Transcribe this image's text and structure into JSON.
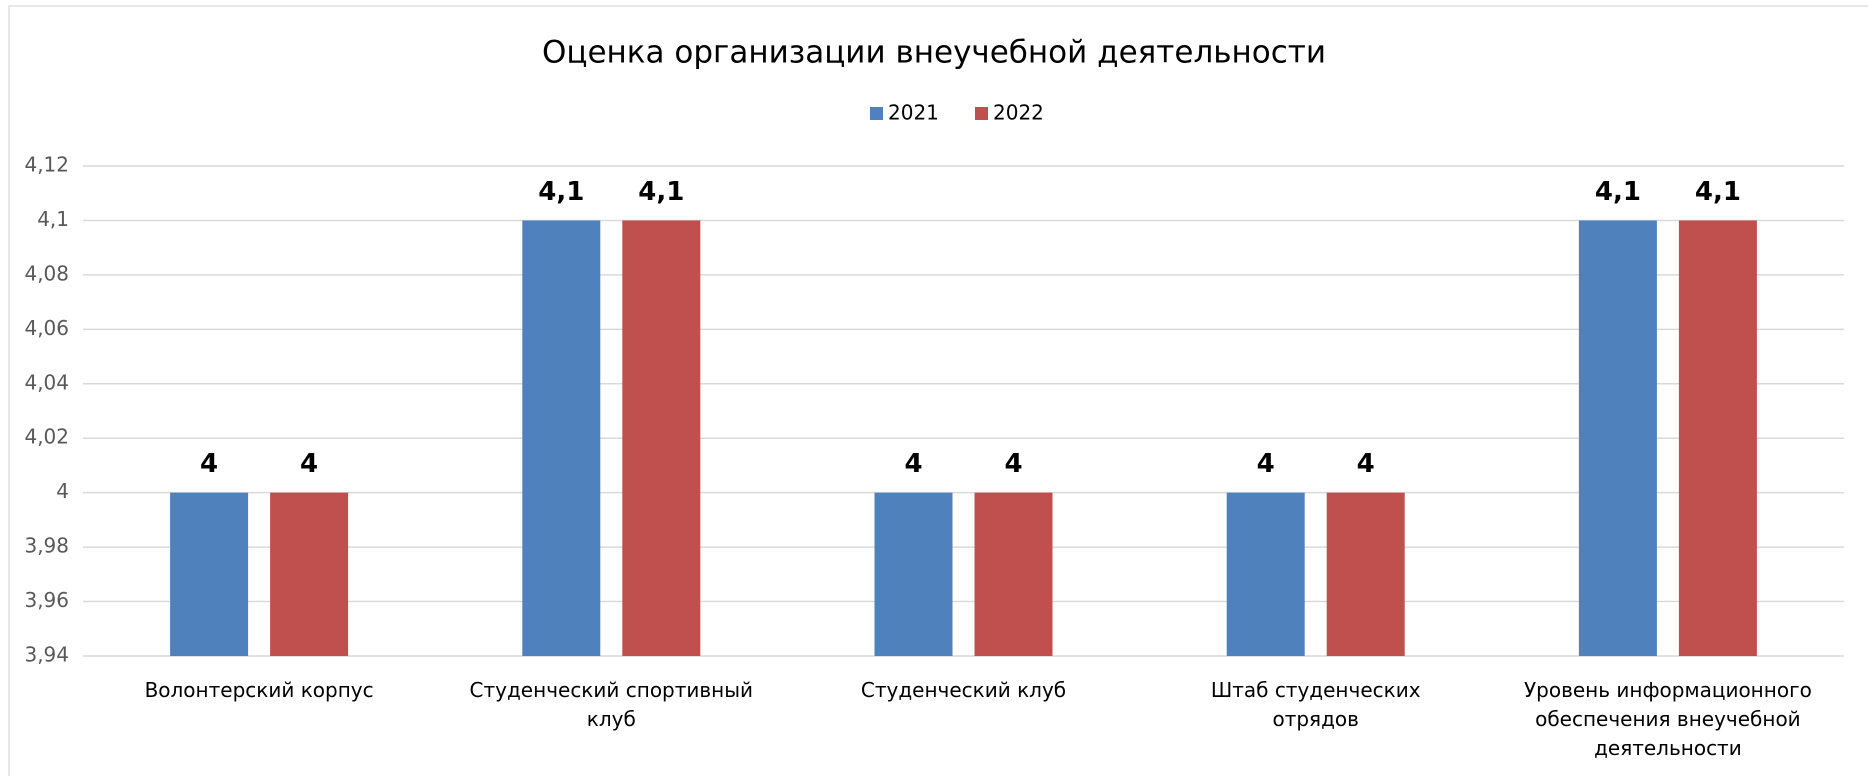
{
  "chart_data": {
    "type": "bar",
    "title": "Оценка организации внеучебной деятельности",
    "categories": [
      "Волонтерский корпус",
      "Студенческий спортивный клуб",
      "Студенческий клуб",
      "Штаб студенческих отрядов",
      "Уровень информационного обеспечения внеучебной деятельности"
    ],
    "series": [
      {
        "name": "2021",
        "color": "#4f81bd",
        "values": [
          4,
          4.1,
          4,
          4,
          4.1
        ],
        "value_labels": [
          "4",
          "4,1",
          "4",
          "4",
          "4,1"
        ]
      },
      {
        "name": "2022",
        "color": "#c0504d",
        "values": [
          4,
          4.1,
          4,
          4,
          4.1
        ],
        "value_labels": [
          "4",
          "4,1",
          "4",
          "4",
          "4,1"
        ]
      }
    ],
    "ylim": [
      3.94,
      4.12
    ],
    "yticks": [
      {
        "value": 3.94,
        "label": "3,94"
      },
      {
        "value": 3.96,
        "label": "3,96"
      },
      {
        "value": 3.98,
        "label": "3,98"
      },
      4,
      {
        "value": 4.02,
        "label": "4,02"
      },
      {
        "value": 4.04,
        "label": "4,04"
      },
      {
        "value": 4.06,
        "label": "4,06"
      },
      {
        "value": 4.08,
        "label": "4,08"
      },
      {
        "value": 4.1,
        "label": "4,1"
      },
      {
        "value": 4.12,
        "label": "4,12"
      }
    ],
    "grid": true,
    "legend": "top"
  }
}
